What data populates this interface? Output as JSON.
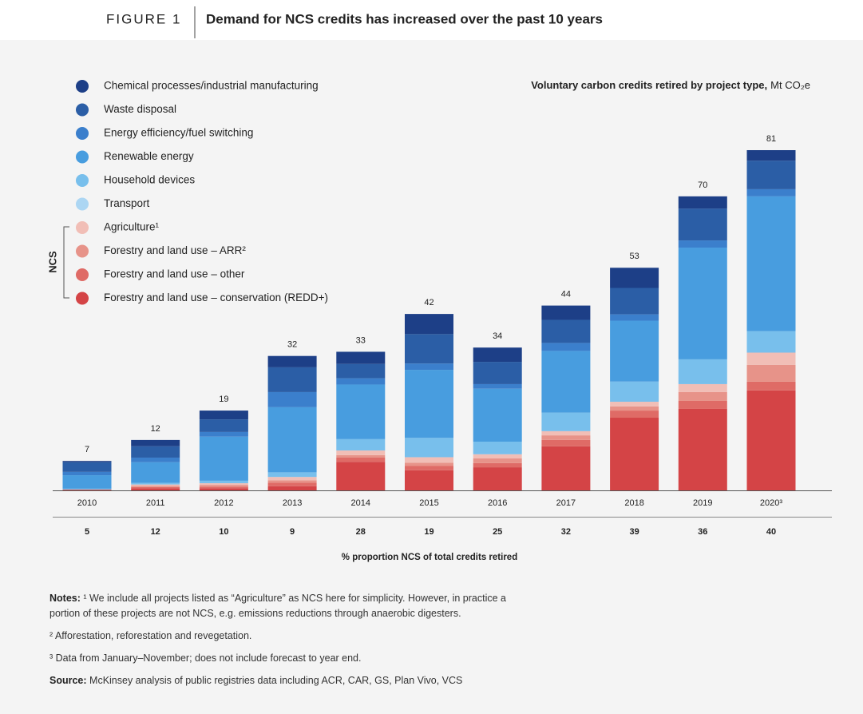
{
  "chart_data": {
    "type": "stacked-bar",
    "figure_label": "FIGURE 1",
    "title": "Demand for NCS credits has increased over the past 10 years",
    "subtitle": "Voluntary carbon credits retired by project type,",
    "subtitle_unit": "Mt CO₂e",
    "ncs_label": "NCS",
    "categories": [
      "2010",
      "2011",
      "2012",
      "2013",
      "2014",
      "2015",
      "2016",
      "2017",
      "2018",
      "2019",
      "2020³"
    ],
    "series": [
      {
        "name": "Chemical processes/industrial manufacturing",
        "color": "#1d3f87",
        "values": [
          0.3,
          1.5,
          2.1,
          2.7,
          2.9,
          4.8,
          3.4,
          3.4,
          4.8,
          2.9,
          2.5
        ]
      },
      {
        "name": "Waste disposal",
        "color": "#2b5ea6",
        "values": [
          2.3,
          2.7,
          3,
          5.9,
          3.4,
          7,
          5.3,
          5.5,
          6.3,
          7.6,
          6.8
        ]
      },
      {
        "name": "Energy efficiency/fuel switching",
        "color": "#3b7fcc",
        "values": [
          0.8,
          1.1,
          1.1,
          3.6,
          1.5,
          1.5,
          1.1,
          1.9,
          1.5,
          1.7,
          1.7
        ]
      },
      {
        "name": "Renewable energy",
        "color": "#489ddf",
        "values": [
          3.2,
          4.9,
          10.5,
          15.5,
          13,
          16.2,
          12.6,
          14.7,
          14.5,
          26.6,
          32.1
        ]
      },
      {
        "name": "Household devices",
        "color": "#78bfec",
        "values": [
          0.2,
          0.4,
          0.6,
          1.1,
          2.7,
          4.6,
          3,
          4.4,
          4.8,
          5.9,
          5.1
        ]
      },
      {
        "name": "Transport",
        "color": "#acd6f3",
        "values": [
          0,
          0,
          0,
          0,
          0,
          0,
          0,
          0,
          0,
          0,
          0
        ]
      },
      {
        "name": "Agriculture¹",
        "color": "#f1beb6",
        "values": [
          0,
          0.3,
          0.4,
          0.8,
          1.1,
          1.3,
          1,
          1,
          1.1,
          1.9,
          2.9
        ]
      },
      {
        "name": "Forestry and land use – ARR²",
        "color": "#e79389",
        "values": [
          0,
          0.3,
          0.4,
          0.6,
          0.6,
          0.8,
          1.1,
          1.1,
          1,
          2.1,
          4
        ]
      },
      {
        "name": "Forestry and land use – other",
        "color": "#df6b66",
        "values": [
          0.1,
          0.3,
          0.4,
          0.8,
          1,
          1,
          1,
          1.5,
          1.7,
          1.9,
          2.1
        ]
      },
      {
        "name": "Forestry and land use – conservation (REDD+)",
        "color": "#d44446",
        "values": [
          0.1,
          0.5,
          0.5,
          1,
          6.8,
          4.8,
          5.5,
          10.5,
          17.3,
          19.4,
          23.8
        ]
      }
    ],
    "totals": [
      7,
      12,
      19,
      32,
      33,
      42,
      34,
      44,
      53,
      70,
      81
    ],
    "ncs_share": {
      "label": "% proportion NCS of total credits retired",
      "values": [
        5,
        12,
        10,
        9,
        28,
        19,
        25,
        32,
        39,
        36,
        40
      ]
    },
    "notes": [
      {
        "label": "Notes:",
        "text": "¹ We include all projects listed as “Agriculture” as NCS here for simplicity. However, in practice a portion of these projects are not NCS, e.g. emissions reductions through anaerobic digesters."
      },
      {
        "text": "² Afforestation, reforestation and revegetation."
      },
      {
        "text": "³ Data from January–November; does not include forecast to year end."
      },
      {
        "label": "Source:",
        "text": "McKinsey analysis of public registries data including ACR, CAR, GS, Plan Vivo, VCS"
      }
    ]
  }
}
